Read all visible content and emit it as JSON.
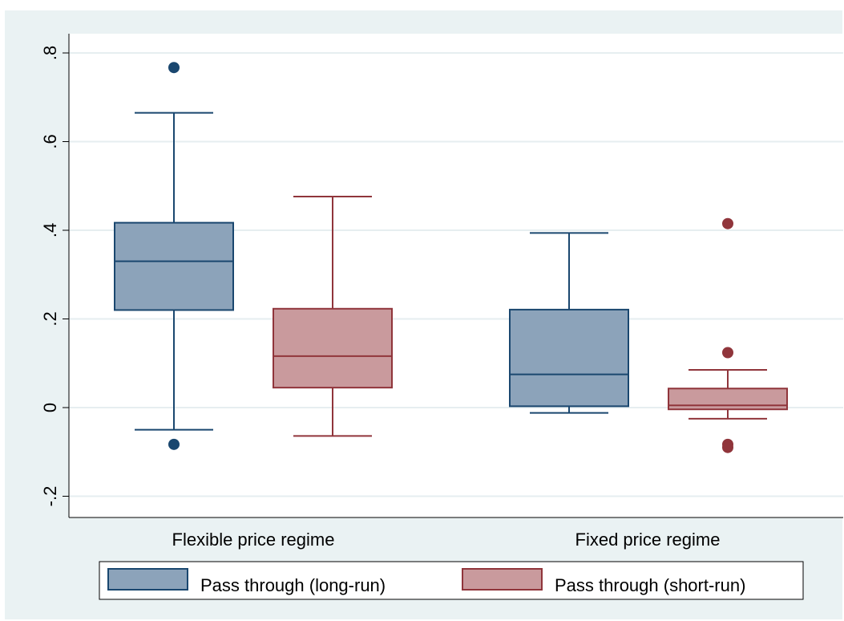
{
  "chart_data": {
    "type": "box",
    "categories": [
      "Flexible price regime",
      "Fixed price regime"
    ],
    "ylim": [
      -0.25,
      0.85
    ],
    "y_ticks": [
      -0.2,
      0,
      0.2,
      0.4,
      0.6,
      0.8
    ],
    "y_tick_labels": [
      "-.2",
      "0",
      ".2",
      ".4",
      ".6",
      ".8"
    ],
    "grid": true,
    "legend_position": "bottom",
    "series": [
      {
        "name": "Pass through (long-run)",
        "fill": "#8ca3ba",
        "stroke": "#1a476f",
        "boxes": [
          {
            "q1": 0.22,
            "median": 0.33,
            "q3": 0.417,
            "whisker_low": -0.05,
            "whisker_high": 0.665,
            "outliers": [
              0.767,
              -0.083
            ]
          },
          {
            "q1": 0.003,
            "median": 0.075,
            "q3": 0.221,
            "whisker_low": -0.012,
            "whisker_high": 0.394,
            "outliers": []
          }
        ]
      },
      {
        "name": "Pass through (short-run)",
        "fill": "#c99a9d",
        "stroke": "#90353b",
        "boxes": [
          {
            "q1": 0.045,
            "median": 0.116,
            "q3": 0.223,
            "whisker_low": -0.064,
            "whisker_high": 0.476,
            "outliers": []
          },
          {
            "q1": -0.004,
            "median": 0.005,
            "q3": 0.043,
            "whisker_low": -0.025,
            "whisker_high": 0.085,
            "outliers": [
              0.415,
              0.124,
              -0.083,
              -0.09
            ]
          }
        ]
      }
    ]
  }
}
